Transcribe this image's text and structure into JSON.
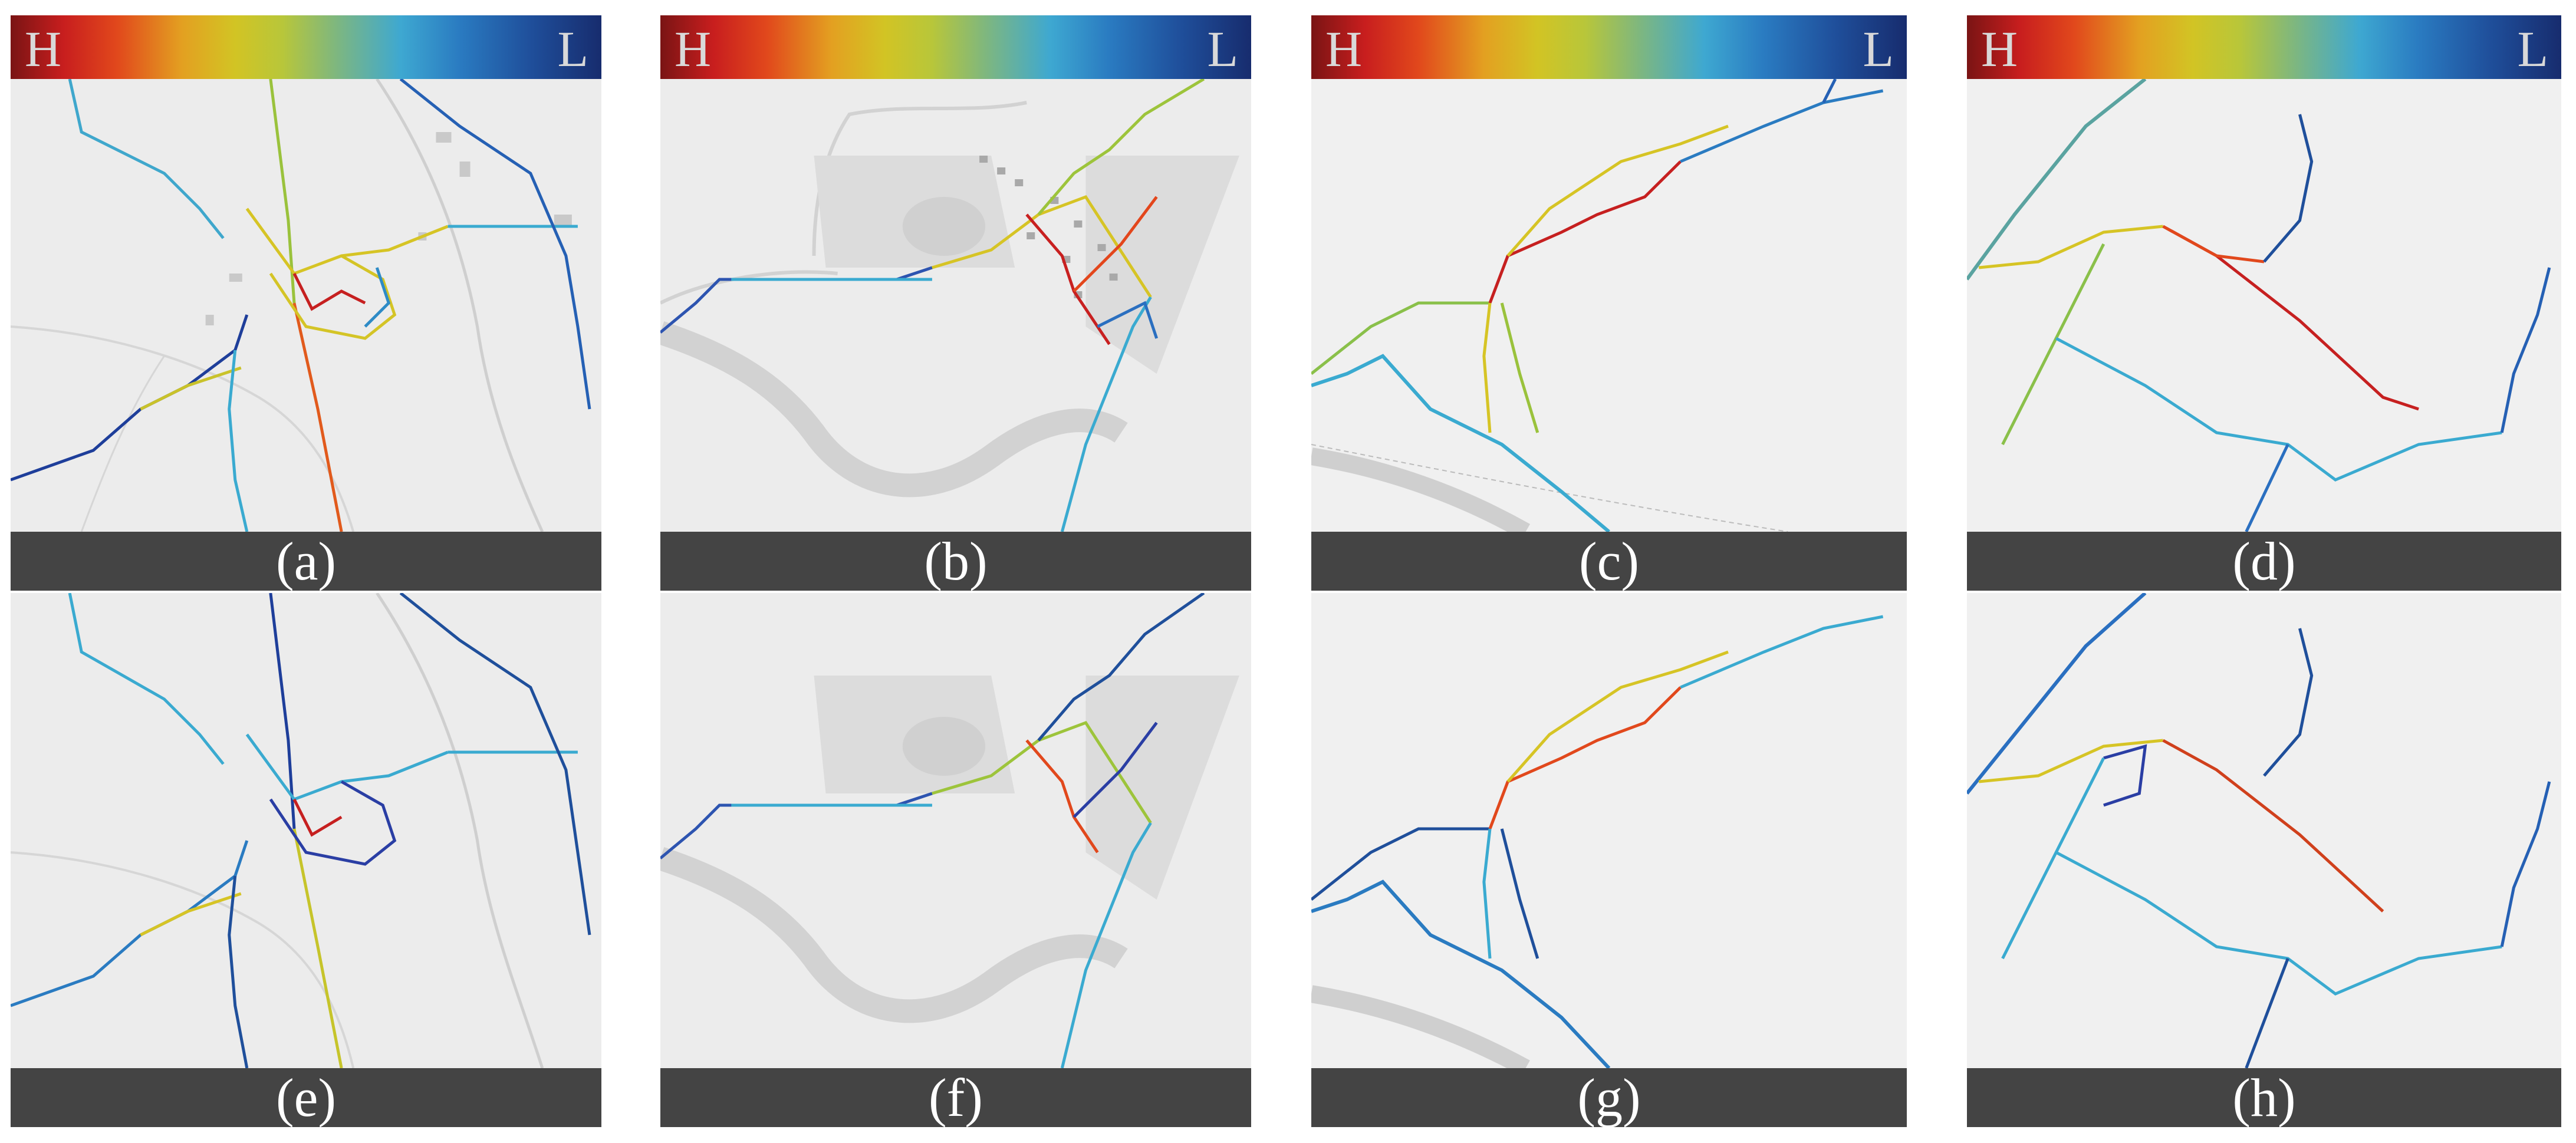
{
  "colorbar": {
    "high_label": "H",
    "low_label": "L",
    "gradient": [
      "#7a1414",
      "#c81e1e",
      "#e1481c",
      "#e3a021",
      "#d2c424",
      "#b8c63a",
      "#7fb77e",
      "#3ea8d1",
      "#2a7bc1",
      "#1f4f9b",
      "#172c6e"
    ]
  },
  "panels": [
    {
      "label": "(a)"
    },
    {
      "label": "(b)"
    },
    {
      "label": "(c)"
    },
    {
      "label": "(d)"
    },
    {
      "label": "(e)"
    },
    {
      "label": "(f)"
    },
    {
      "label": "(g)"
    },
    {
      "label": "(h)"
    }
  ],
  "colors": {
    "caption_bg": "#444444",
    "map_bg": "#ececec",
    "road": "#cfcfcf"
  }
}
